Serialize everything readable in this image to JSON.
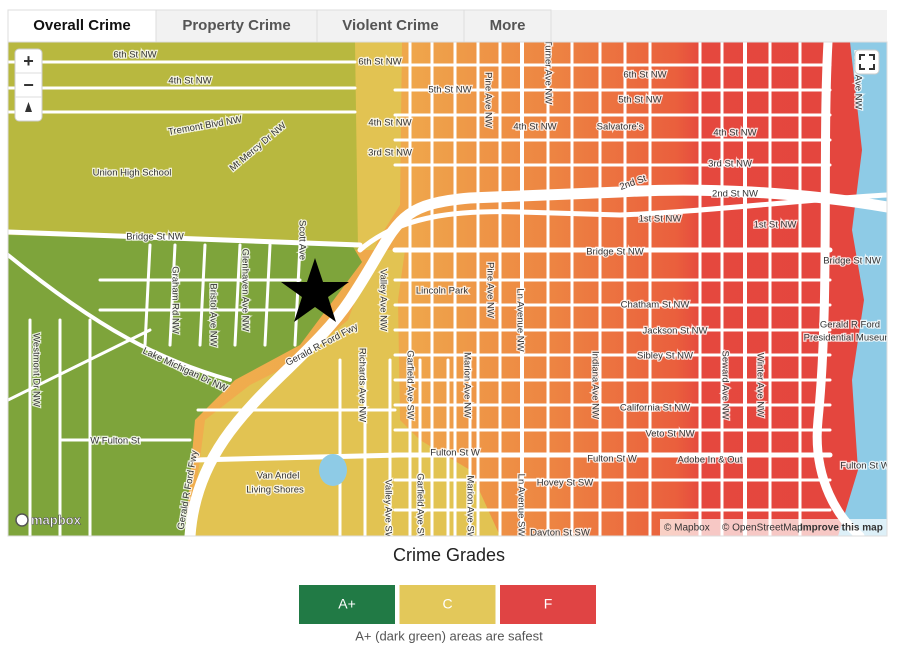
{
  "tabs": [
    "Overall Crime",
    "Property Crime",
    "Violent Crime",
    "More"
  ],
  "map": {
    "controls": {
      "zoom_in": "+",
      "zoom_out": "−"
    },
    "labels": [
      "6th St NW",
      "4th St NW",
      "Tremont Blvd NW",
      "Mt Mercy Dr NW",
      "Union High School",
      "Bridge St NW",
      "Graham Rd NW",
      "Bristol Ave NW",
      "Glenhaven Ave NW",
      "Scott Ave",
      "Gerald R Ford Fwy",
      "Lake Michigan Dr NW",
      "Westmont Dr NW",
      "W Fulton St",
      "Gerald R Ford Fwy",
      "Van Andel",
      "Living Shores",
      "6th St NW",
      "5th St NW",
      "4th St NW",
      "3rd St NW",
      "4th St NW",
      "Pine Ave NW",
      "Turner Ave NW",
      "6th St NW",
      "5th St NW",
      "4th St NW",
      "Salvatore's",
      "3rd St NW",
      "2nd St",
      "2nd St NW",
      "1st St NW",
      "1st St NW",
      "Bridge St NW",
      "Bridge St NW",
      "Lincoln Park",
      "Valley Ave NW",
      "Pine Ave NW",
      "Ln Avenue NW",
      "Chatham St NW",
      "Jackson St NW",
      "Sibley St NW",
      "Gerald R Ford",
      "Presidential Museum",
      "Richards Ave NW",
      "Garfield Ave SW",
      "Marion Ave NW",
      "Indiana Ave NW",
      "Seward Ave NW",
      "Winter Ave NW",
      "California St NW",
      "Veto St NW",
      "Fulton St W",
      "Fulton St W",
      "Adobe In & Out",
      "Fulton St W",
      "Hovey St SW",
      "Garfield Ave SW",
      "Marion Ave SW",
      "Valley Ave SW",
      "Ln Avenue SW",
      "Dayton St SW",
      "Front Ave NW"
    ],
    "logo": "mapbox",
    "attribution": [
      "© Mapbox",
      "© OpenStreetMap",
      "Improve this map"
    ]
  },
  "legend": {
    "title": "Crime Grades",
    "grades": [
      {
        "label": "A+",
        "color": "#217a45"
      },
      {
        "label": "C",
        "color": "#e3c85a"
      },
      {
        "label": "F",
        "color": "#e04444"
      }
    ],
    "caption": "A+ (dark green) areas are safest"
  }
}
